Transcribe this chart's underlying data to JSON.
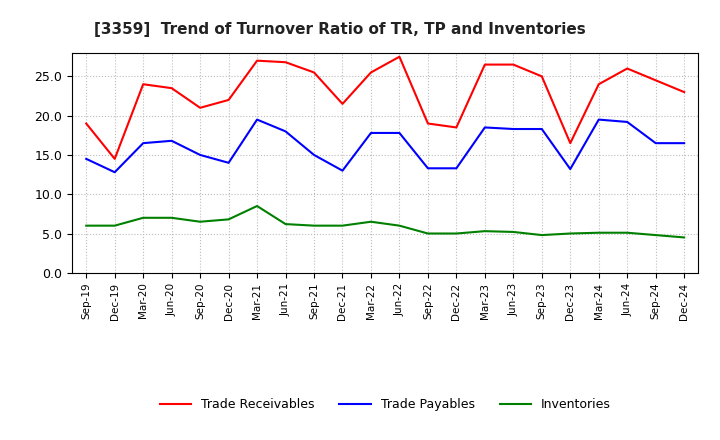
{
  "title": "[3359]  Trend of Turnover Ratio of TR, TP and Inventories",
  "x_labels": [
    "Sep-19",
    "Dec-19",
    "Mar-20",
    "Jun-20",
    "Sep-20",
    "Dec-20",
    "Mar-21",
    "Jun-21",
    "Sep-21",
    "Dec-21",
    "Mar-22",
    "Jun-22",
    "Sep-22",
    "Dec-22",
    "Mar-23",
    "Jun-23",
    "Sep-23",
    "Dec-23",
    "Mar-24",
    "Jun-24",
    "Sep-24",
    "Dec-24"
  ],
  "trade_receivables": [
    19.0,
    14.5,
    24.0,
    23.5,
    21.0,
    22.0,
    27.0,
    26.8,
    25.5,
    21.5,
    25.5,
    27.5,
    19.0,
    18.5,
    26.5,
    26.5,
    25.0,
    16.5,
    24.0,
    26.0,
    24.5,
    23.0
  ],
  "trade_payables": [
    14.5,
    12.8,
    16.5,
    16.8,
    15.0,
    14.0,
    19.5,
    18.0,
    15.0,
    13.0,
    17.8,
    17.8,
    13.3,
    13.3,
    18.5,
    18.3,
    18.3,
    13.2,
    19.5,
    19.2,
    16.5,
    16.5
  ],
  "inventories": [
    6.0,
    6.0,
    7.0,
    7.0,
    6.5,
    6.8,
    8.5,
    6.2,
    6.0,
    6.0,
    6.5,
    6.0,
    5.0,
    5.0,
    5.3,
    5.2,
    4.8,
    5.0,
    5.1,
    5.1,
    4.8,
    4.5
  ],
  "ylim": [
    0,
    28.0
  ],
  "yticks": [
    0.0,
    5.0,
    10.0,
    15.0,
    20.0,
    25.0
  ],
  "line_color_tr": "#ff0000",
  "line_color_tp": "#0000ff",
  "line_color_inv": "#008000",
  "legend_labels": [
    "Trade Receivables",
    "Trade Payables",
    "Inventories"
  ],
  "background_color": "#ffffff",
  "grid_color": "#aaaaaa"
}
